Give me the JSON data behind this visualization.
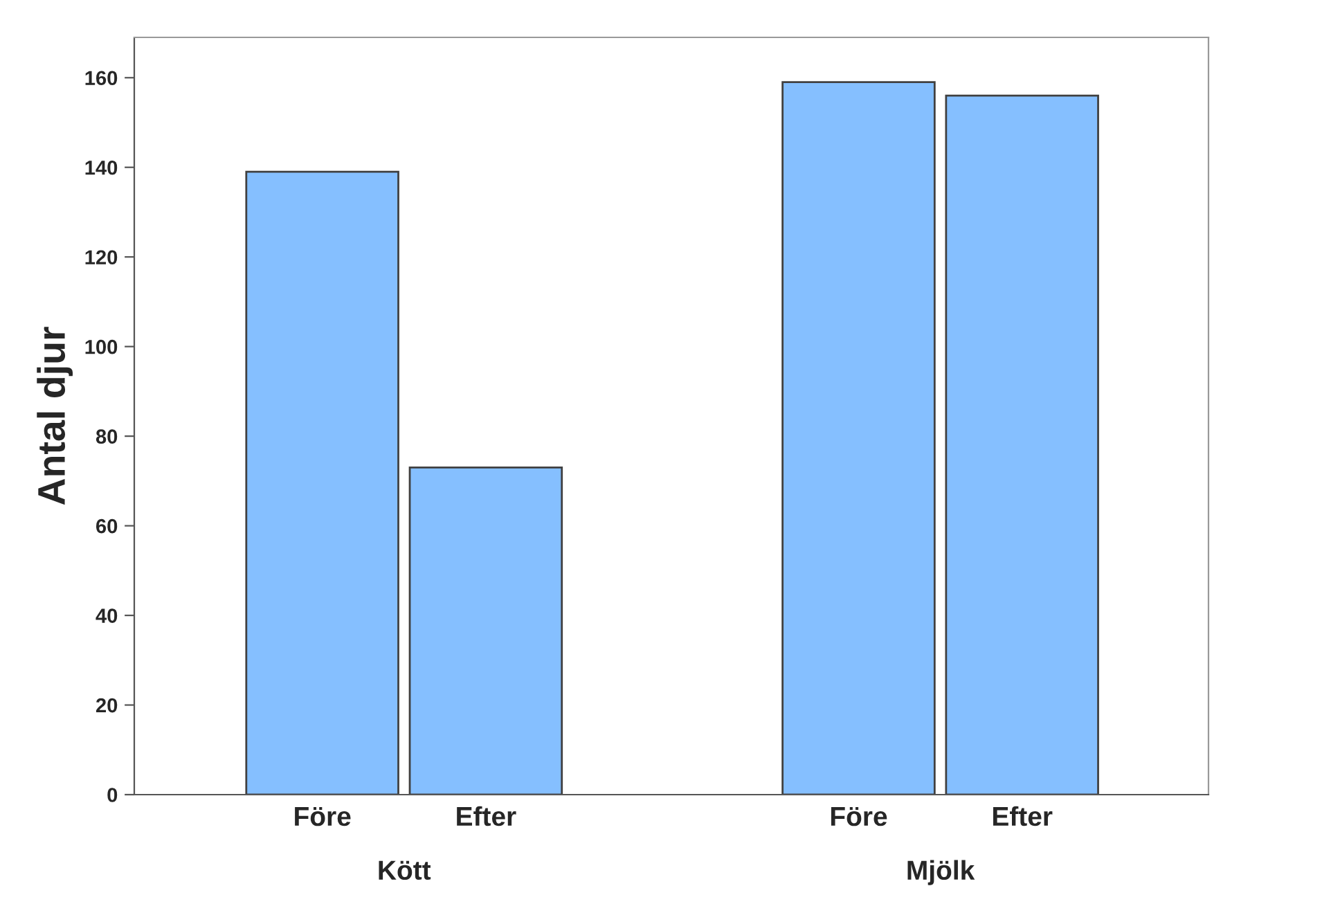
{
  "chart_data": {
    "type": "bar",
    "ylabel": "Antal djur",
    "categories": [
      "Före",
      "Efter",
      "Före",
      "Efter"
    ],
    "values": [
      139,
      73,
      159,
      156
    ],
    "color": "#85bfff",
    "ylim": [
      0,
      169
    ],
    "yticks": [
      0,
      20,
      40,
      60,
      80,
      100,
      120,
      140,
      160
    ],
    "grid": false,
    "annotations": [
      "Kött",
      "Mjölk"
    ]
  }
}
